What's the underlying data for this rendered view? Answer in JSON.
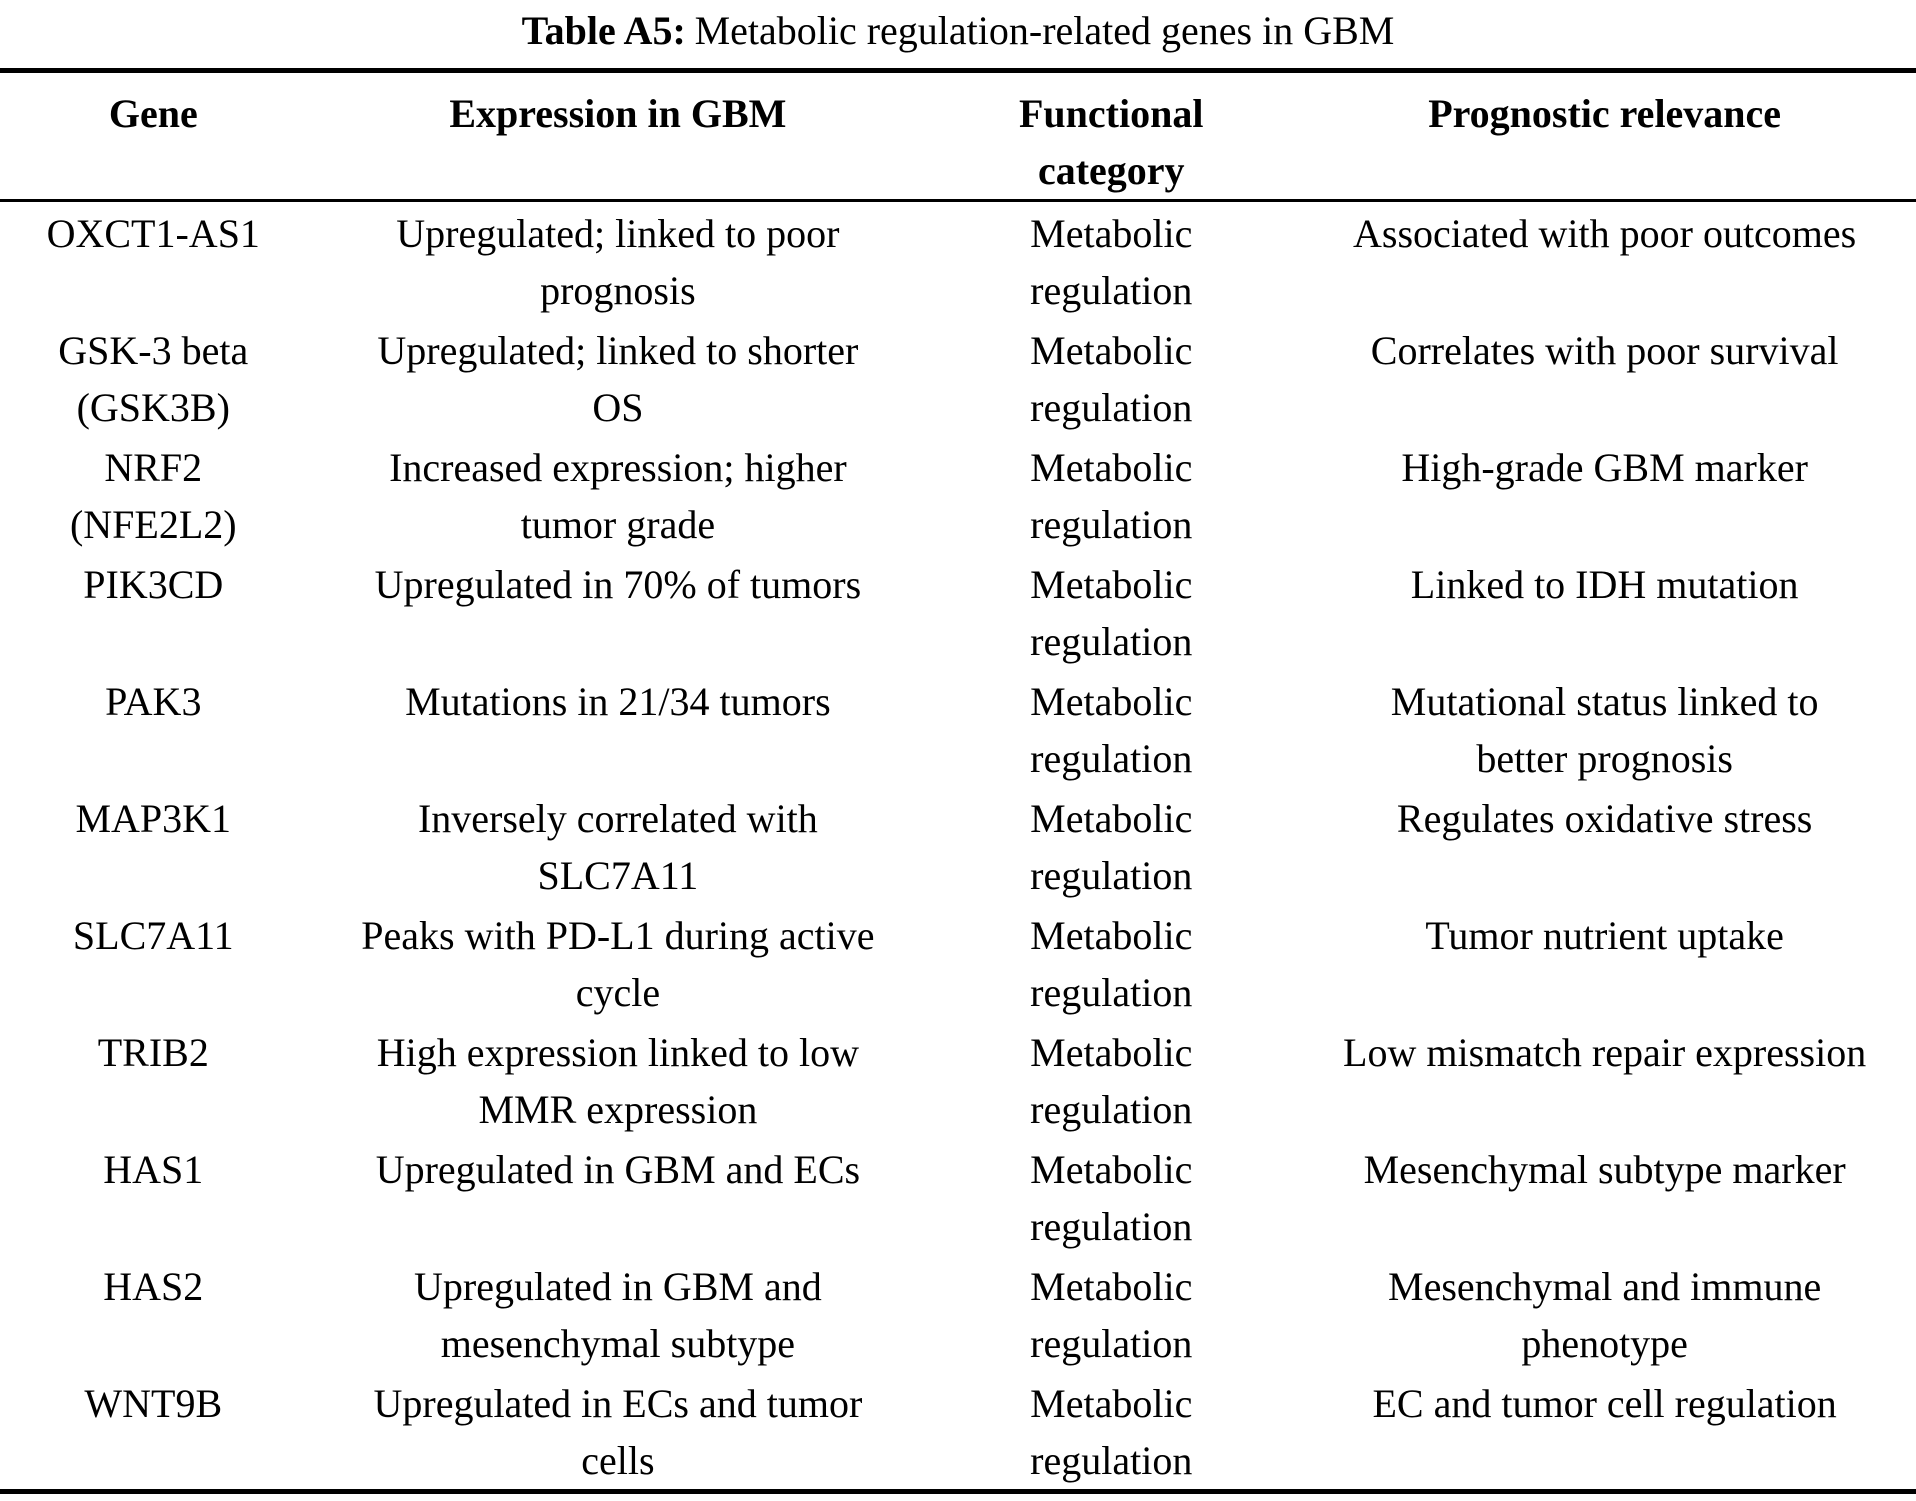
{
  "caption": {
    "label": "Table A5:",
    "text": "Metabolic regulation-related genes in GBM"
  },
  "table": {
    "headers": [
      "Gene",
      "Expression in GBM",
      "Functional\ncategory",
      "Prognostic relevance"
    ],
    "rows": [
      {
        "gene": "OXCT1-AS1",
        "expression": "Upregulated; linked to poor\nprognosis",
        "category": "Metabolic\nregulation",
        "prognostic": "Associated with poor outcomes"
      },
      {
        "gene": "GSK-3 beta\n(GSK3B)",
        "expression": "Upregulated; linked to shorter\nOS",
        "category": "Metabolic\nregulation",
        "prognostic": "Correlates with poor survival"
      },
      {
        "gene": "NRF2\n(NFE2L2)",
        "expression": "Increased expression; higher\ntumor grade",
        "category": "Metabolic\nregulation",
        "prognostic": "High-grade GBM marker"
      },
      {
        "gene": "PIK3CD",
        "expression": "Upregulated in 70% of tumors",
        "category": "Metabolic\nregulation",
        "prognostic": "Linked to IDH mutation"
      },
      {
        "gene": "PAK3",
        "expression": "Mutations in 21/34 tumors",
        "category": "Metabolic\nregulation",
        "prognostic": "Mutational status linked to\nbetter prognosis"
      },
      {
        "gene": "MAP3K1",
        "expression": "Inversely correlated with\nSLC7A11",
        "category": "Metabolic\nregulation",
        "prognostic": "Regulates oxidative stress"
      },
      {
        "gene": "SLC7A11",
        "expression": "Peaks with PD-L1 during active\ncycle",
        "category": "Metabolic\nregulation",
        "prognostic": "Tumor nutrient uptake"
      },
      {
        "gene": "TRIB2",
        "expression": "High expression linked to low\nMMR expression",
        "category": "Metabolic\nregulation",
        "prognostic": "Low mismatch repair expression"
      },
      {
        "gene": "HAS1",
        "expression": "Upregulated in GBM and ECs",
        "category": "Metabolic\nregulation",
        "prognostic": "Mesenchymal subtype marker"
      },
      {
        "gene": "HAS2",
        "expression": "Upregulated in GBM and\nmesenchymal subtype",
        "category": "Metabolic\nregulation",
        "prognostic": "Mesenchymal and immune\nphenotype"
      },
      {
        "gene": "WNT9B",
        "expression": "Upregulated in ECs and tumor\ncells",
        "category": "Metabolic\nregulation",
        "prognostic": "EC and tumor cell regulation"
      }
    ]
  }
}
